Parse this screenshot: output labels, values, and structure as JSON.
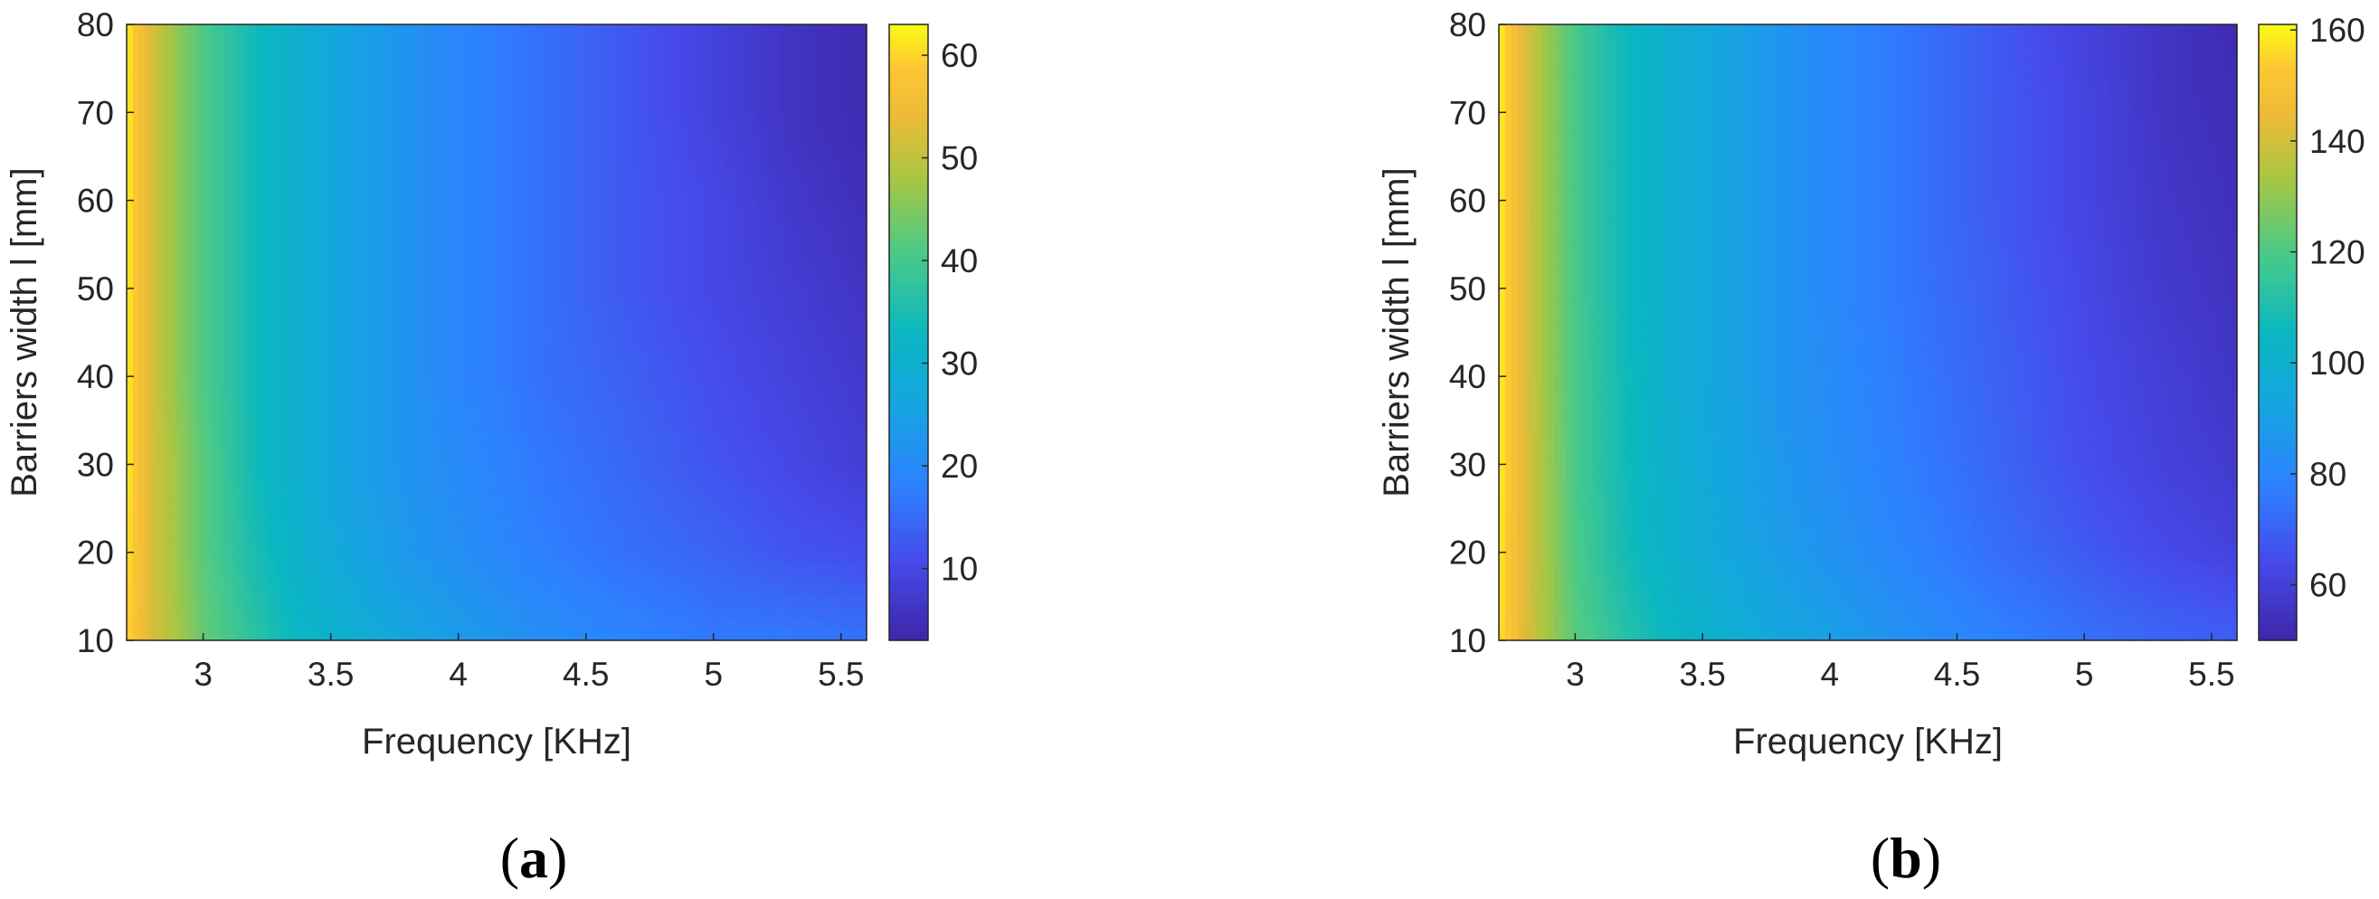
{
  "chart_data": [
    {
      "type": "heatmap",
      "panel_label": "(a)",
      "xlabel": "Frequency [KHz]",
      "ylabel": "Barriers width l [mm]",
      "xlim": [
        2.7,
        5.6
      ],
      "ylim": [
        10,
        80
      ],
      "xticks": [
        3,
        3.5,
        4,
        4.5,
        5,
        5.5
      ],
      "xtick_labels": [
        "3",
        "3.5",
        "4",
        "4.5",
        "5",
        "5.5"
      ],
      "yticks": [
        10,
        20,
        30,
        40,
        50,
        60,
        70,
        80
      ],
      "ytick_labels": [
        "10",
        "20",
        "30",
        "40",
        "50",
        "60",
        "70",
        "80"
      ],
      "colorbar": {
        "ticks": [
          10,
          20,
          30,
          40,
          50,
          60
        ],
        "tick_labels": [
          "10",
          "20",
          "30",
          "40",
          "50",
          "60"
        ],
        "range": [
          3,
          63
        ],
        "colormap": "parula"
      },
      "grid": false,
      "x": [
        2.7,
        2.8,
        2.9,
        3.0,
        3.2,
        3.4,
        3.6,
        3.8,
        4.0,
        4.3,
        4.6,
        5.0,
        5.3,
        5.6
      ],
      "y": [
        10,
        20,
        30,
        40,
        50,
        60,
        70,
        80
      ],
      "z": [
        [
          60,
          52,
          48,
          43,
          37,
          32,
          29,
          26,
          24,
          21,
          19,
          17,
          17,
          16
        ],
        [
          61,
          52,
          47,
          42,
          35,
          30,
          26,
          23,
          21,
          18,
          16,
          14,
          12,
          11
        ],
        [
          62,
          52,
          47,
          42,
          34,
          29,
          25,
          22,
          20,
          17,
          15,
          12,
          10,
          8
        ],
        [
          62,
          52,
          46,
          41,
          34,
          29,
          25,
          22,
          19,
          16,
          14,
          11,
          9,
          7
        ],
        [
          62,
          52,
          46,
          41,
          34,
          29,
          25,
          22,
          19,
          16,
          13,
          10,
          8,
          6
        ],
        [
          62,
          52,
          46,
          41,
          34,
          29,
          25,
          22,
          19,
          16,
          13,
          10,
          7,
          5
        ],
        [
          62,
          52,
          46,
          41,
          34,
          29,
          25,
          22,
          19,
          16,
          13,
          9,
          6,
          4
        ],
        [
          62,
          52,
          46,
          41,
          34,
          29,
          25,
          22,
          19,
          16,
          13,
          9,
          6,
          4
        ]
      ]
    },
    {
      "type": "heatmap",
      "panel_label": "(b)",
      "xlabel": "Frequency [KHz]",
      "ylabel": "Barriers width l [mm]",
      "xlim": [
        2.7,
        5.6
      ],
      "ylim": [
        10,
        80
      ],
      "xticks": [
        3,
        3.5,
        4,
        4.5,
        5,
        5.5
      ],
      "xtick_labels": [
        "3",
        "3.5",
        "4",
        "4.5",
        "5",
        "5.5"
      ],
      "yticks": [
        10,
        20,
        30,
        40,
        50,
        60,
        70,
        80
      ],
      "ytick_labels": [
        "10",
        "20",
        "30",
        "40",
        "50",
        "60",
        "70",
        "80"
      ],
      "colorbar": {
        "ticks": [
          60,
          80,
          100,
          120,
          140,
          160
        ],
        "tick_labels": [
          "60",
          "80",
          "100",
          "120",
          "140",
          "160"
        ],
        "range": [
          50,
          161
        ],
        "colormap": "parula"
      },
      "grid": false,
      "x": [
        2.7,
        2.8,
        2.9,
        3.0,
        3.2,
        3.4,
        3.6,
        3.8,
        4.0,
        4.3,
        4.6,
        5.0,
        5.3,
        5.6
      ],
      "y": [
        10,
        20,
        30,
        40,
        50,
        60,
        70,
        80
      ],
      "z": [
        [
          158,
          142,
          132,
          122,
          112,
          104,
          99,
          94,
          90,
          84,
          79,
          74,
          71,
          69
        ],
        [
          159,
          142,
          131,
          120,
          108,
          100,
          94,
          89,
          85,
          79,
          74,
          68,
          64,
          61
        ],
        [
          160,
          142,
          131,
          119,
          107,
          99,
          93,
          87,
          83,
          77,
          72,
          65,
          61,
          58
        ],
        [
          160,
          142,
          130,
          119,
          107,
          98,
          92,
          86,
          82,
          76,
          71,
          64,
          60,
          56
        ],
        [
          160,
          142,
          130,
          119,
          106,
          98,
          92,
          86,
          81,
          75,
          70,
          63,
          58,
          55
        ],
        [
          160,
          142,
          130,
          119,
          106,
          98,
          92,
          86,
          81,
          75,
          69,
          62,
          57,
          54
        ],
        [
          160,
          142,
          130,
          119,
          106,
          98,
          92,
          86,
          81,
          75,
          69,
          62,
          56,
          53
        ],
        [
          160,
          142,
          130,
          119,
          106,
          98,
          92,
          86,
          81,
          75,
          69,
          61,
          56,
          52
        ]
      ]
    }
  ]
}
